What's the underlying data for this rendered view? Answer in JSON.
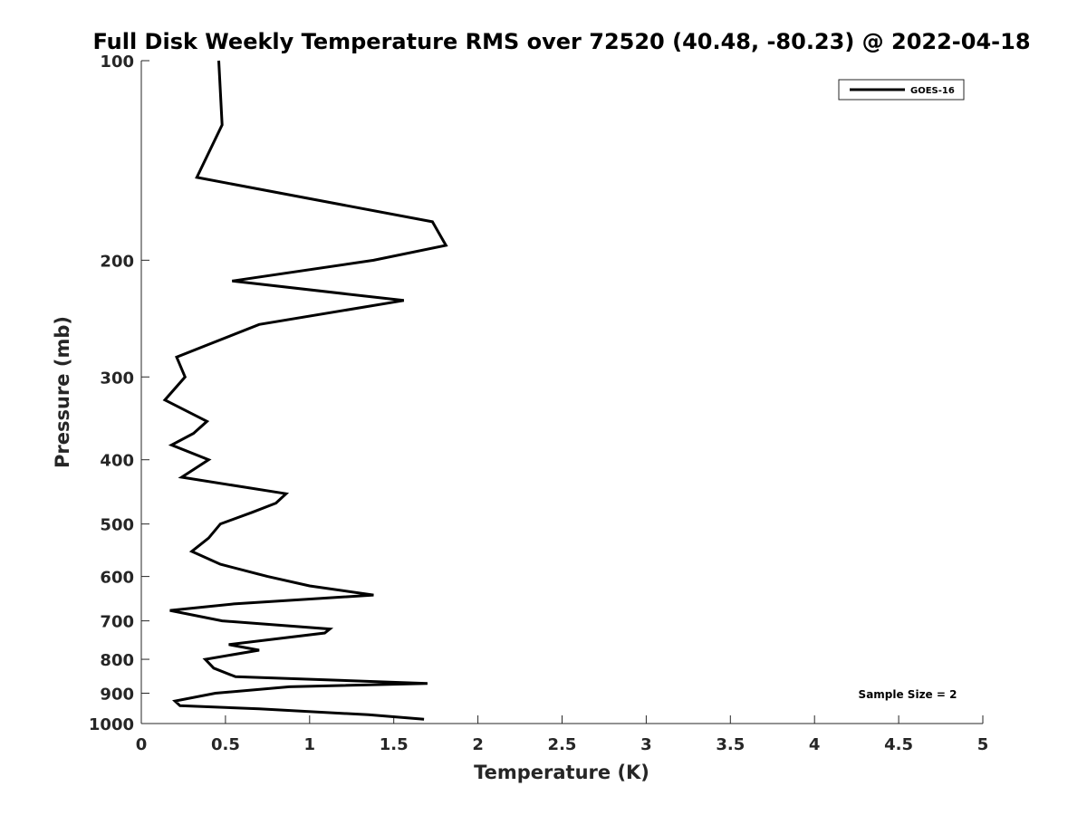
{
  "chart_data": {
    "type": "line",
    "title": "Full Disk Weekly Temperature RMS over 72520 (40.48, -80.23) @ 2022-04-18",
    "xlabel": "Temperature (K)",
    "ylabel": "Pressure (mb)",
    "xlim": [
      0,
      5
    ],
    "ylim": [
      100,
      1000
    ],
    "y_scale": "log",
    "y_reversed": true,
    "x_ticks": [
      0,
      0.5,
      1,
      1.5,
      2,
      2.5,
      3,
      3.5,
      4,
      4.5,
      5
    ],
    "x_tick_labels": [
      "0",
      "0.5",
      "1",
      "1.5",
      "2",
      "2.5",
      "3",
      "3.5",
      "4",
      "4.5",
      "5"
    ],
    "y_ticks": [
      100,
      200,
      300,
      400,
      500,
      600,
      700,
      800,
      900,
      1000
    ],
    "y_tick_labels": [
      "100",
      "200",
      "300",
      "400",
      "500",
      "600",
      "700",
      "800",
      "900",
      "1000"
    ],
    "grid": false,
    "legend_position": "top-right",
    "annotation": "Sample Size = 2",
    "series": [
      {
        "name": "GOES-16",
        "color": "#000000",
        "points": [
          [
            0.46,
            100
          ],
          [
            0.48,
            125
          ],
          [
            0.33,
            150
          ],
          [
            1.73,
            175
          ],
          [
            1.81,
            190
          ],
          [
            1.38,
            200
          ],
          [
            0.54,
            215
          ],
          [
            1.56,
            230
          ],
          [
            0.7,
            250
          ],
          [
            0.21,
            280
          ],
          [
            0.26,
            300
          ],
          [
            0.14,
            325
          ],
          [
            0.39,
            350
          ],
          [
            0.31,
            365
          ],
          [
            0.18,
            380
          ],
          [
            0.4,
            400
          ],
          [
            0.24,
            425
          ],
          [
            0.86,
            450
          ],
          [
            0.8,
            465
          ],
          [
            0.66,
            480
          ],
          [
            0.47,
            500
          ],
          [
            0.4,
            525
          ],
          [
            0.3,
            550
          ],
          [
            0.47,
            575
          ],
          [
            0.75,
            600
          ],
          [
            1.0,
            620
          ],
          [
            1.38,
            640
          ],
          [
            0.55,
            660
          ],
          [
            0.17,
            675
          ],
          [
            0.48,
            700
          ],
          [
            1.12,
            720
          ],
          [
            1.09,
            730
          ],
          [
            0.52,
            760
          ],
          [
            0.7,
            775
          ],
          [
            0.38,
            800
          ],
          [
            0.43,
            825
          ],
          [
            0.56,
            850
          ],
          [
            1.7,
            870
          ],
          [
            0.88,
            880
          ],
          [
            0.44,
            900
          ],
          [
            0.2,
            925
          ],
          [
            0.23,
            940
          ],
          [
            0.7,
            950
          ],
          [
            1.35,
            970
          ],
          [
            1.68,
            985
          ]
        ]
      }
    ]
  }
}
